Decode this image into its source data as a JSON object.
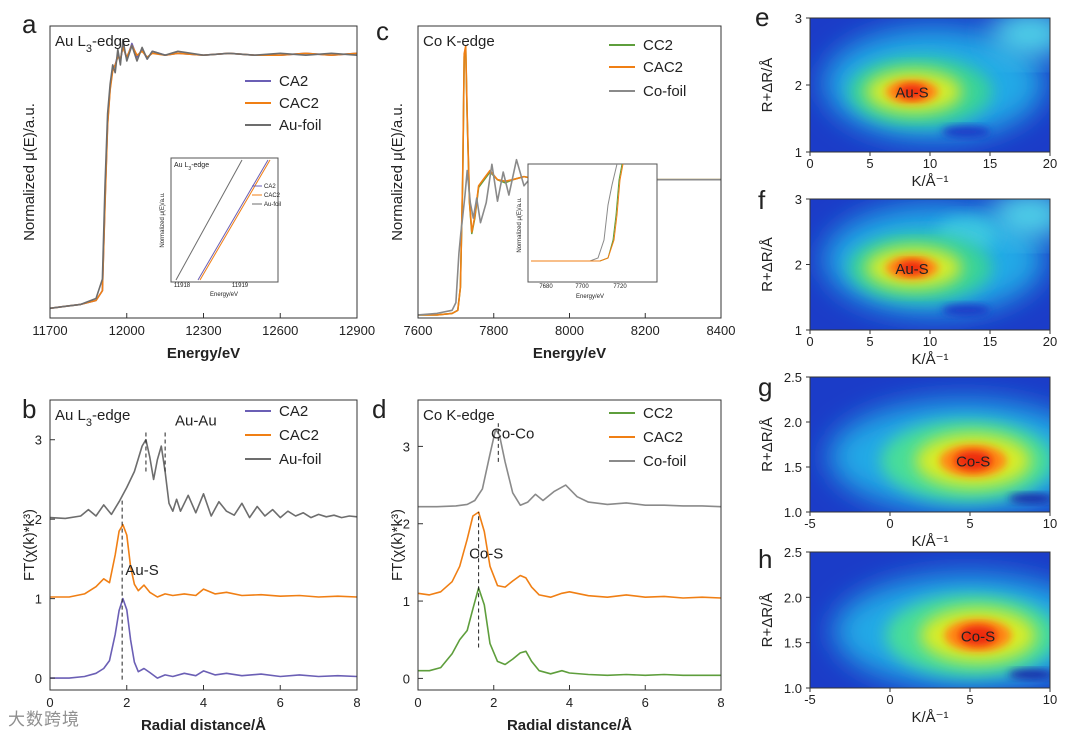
{
  "colors": {
    "CA2": "#6b5fb5",
    "CAC2": "#f07f14",
    "Au-foil": "#6d6d6d",
    "CC2": "#5e9e3c",
    "Co-foil": "#8a8a8a"
  },
  "watermark": "大数跨境",
  "chart_data": [
    {
      "panel": "a",
      "type": "line",
      "edge_label": "Au L3-edge",
      "xlabel": "Energy/eV",
      "ylabel": "Normalized μ(E)/a.u.",
      "xlim": [
        11700,
        12900
      ],
      "ylim": [
        0,
        1.5
      ],
      "xticks": [
        11700,
        12000,
        12300,
        12600,
        12900
      ],
      "legend": [
        "CA2",
        "CAC2",
        "Au-foil"
      ],
      "legend_position": "top-right",
      "series": [
        {
          "name": "CA2",
          "x": [
            11700,
            11760,
            11820,
            11880,
            11905,
            11915,
            11925,
            11935,
            11945,
            11955,
            11965,
            11975,
            11985,
            12000,
            12020,
            12040,
            12060,
            12080,
            12100,
            12150,
            12200,
            12300,
            12400,
            12500,
            12600,
            12700,
            12800,
            12900
          ],
          "y": [
            0.05,
            0.06,
            0.07,
            0.09,
            0.14,
            0.6,
            1.0,
            1.18,
            1.28,
            1.3,
            1.35,
            1.32,
            1.4,
            1.33,
            1.41,
            1.34,
            1.38,
            1.33,
            1.37,
            1.35,
            1.36,
            1.35,
            1.36,
            1.35,
            1.35,
            1.36,
            1.35,
            1.36
          ]
        },
        {
          "name": "CAC2",
          "x": [
            11700,
            11760,
            11820,
            11880,
            11905,
            11915,
            11925,
            11935,
            11945,
            11955,
            11965,
            11975,
            11985,
            12000,
            12020,
            12040,
            12060,
            12080,
            12100,
            12150,
            12200,
            12300,
            12400,
            12500,
            12600,
            12700,
            12800,
            12900
          ],
          "y": [
            0.05,
            0.06,
            0.07,
            0.09,
            0.14,
            0.58,
            0.99,
            1.17,
            1.27,
            1.3,
            1.34,
            1.33,
            1.39,
            1.34,
            1.4,
            1.35,
            1.37,
            1.34,
            1.36,
            1.35,
            1.36,
            1.35,
            1.36,
            1.35,
            1.35,
            1.36,
            1.35,
            1.36
          ]
        },
        {
          "name": "Au-foil",
          "x": [
            11700,
            11760,
            11820,
            11880,
            11905,
            11915,
            11925,
            11935,
            11945,
            11955,
            11965,
            11975,
            11985,
            12000,
            12020,
            12040,
            12060,
            12080,
            12100,
            12150,
            12200,
            12300,
            12400,
            12500,
            12600,
            12700,
            12800,
            12900
          ],
          "y": [
            0.05,
            0.06,
            0.07,
            0.1,
            0.2,
            0.68,
            1.05,
            1.2,
            1.3,
            1.26,
            1.38,
            1.3,
            1.43,
            1.32,
            1.4,
            1.32,
            1.39,
            1.33,
            1.37,
            1.35,
            1.37,
            1.35,
            1.36,
            1.35,
            1.36,
            1.35,
            1.36,
            1.35
          ]
        }
      ],
      "inset": {
        "edge_label": "Au L3-edge",
        "ylabel": "Normalized μ(E)/a.u.",
        "xlabel": "Energy/eV",
        "xticks": [
          "11918",
          "11919"
        ],
        "legend": [
          "CA2",
          "CAC2",
          "Au-foil"
        ]
      }
    },
    {
      "panel": "c",
      "type": "line",
      "edge_label": "Co K-edge",
      "xlabel": "Energy/eV",
      "ylabel": "Normalized μ(E)/a.u.",
      "xlim": [
        7600,
        8400
      ],
      "ylim": [
        0,
        1.9
      ],
      "xticks": [
        7600,
        7800,
        8000,
        8200,
        8400
      ],
      "legend": [
        "CC2",
        "CAC2",
        "Co-foil"
      ],
      "legend_position": "top-right",
      "series": [
        {
          "name": "CC2",
          "x": [
            7600,
            7650,
            7690,
            7705,
            7712,
            7718,
            7722,
            7726,
            7730,
            7736,
            7742,
            7750,
            7760,
            7775,
            7790,
            7810,
            7830,
            7850,
            7880,
            7920,
            7960,
            8000,
            8050,
            8100,
            8200,
            8300,
            8400
          ],
          "y": [
            0.02,
            0.02,
            0.03,
            0.05,
            0.2,
            0.9,
            1.7,
            1.75,
            1.3,
            0.75,
            0.55,
            0.65,
            0.85,
            0.9,
            0.95,
            0.9,
            0.88,
            0.9,
            0.92,
            0.9,
            0.91,
            0.9,
            0.9,
            0.9,
            0.9,
            0.9,
            0.9
          ]
        },
        {
          "name": "CAC2",
          "x": [
            7600,
            7650,
            7690,
            7705,
            7712,
            7718,
            7722,
            7726,
            7730,
            7736,
            7742,
            7750,
            7760,
            7775,
            7790,
            7810,
            7830,
            7850,
            7880,
            7920,
            7960,
            8000,
            8050,
            8100,
            8200,
            8300,
            8400
          ],
          "y": [
            0.02,
            0.02,
            0.03,
            0.05,
            0.2,
            0.92,
            1.72,
            1.77,
            1.32,
            0.76,
            0.56,
            0.66,
            0.86,
            0.91,
            0.96,
            0.9,
            0.89,
            0.9,
            0.92,
            0.9,
            0.91,
            0.9,
            0.9,
            0.9,
            0.9,
            0.9,
            0.9
          ]
        },
        {
          "name": "Co-foil",
          "x": [
            7600,
            7650,
            7690,
            7700,
            7708,
            7713,
            7718,
            7724,
            7730,
            7738,
            7746,
            7755,
            7765,
            7780,
            7795,
            7810,
            7825,
            7840,
            7860,
            7880,
            7900,
            7930,
            7960,
            8000,
            8100,
            8200,
            8400
          ],
          "y": [
            0.02,
            0.03,
            0.05,
            0.1,
            0.42,
            0.55,
            0.66,
            0.8,
            0.96,
            0.75,
            0.65,
            0.78,
            0.62,
            0.75,
            1.0,
            0.76,
            0.95,
            0.8,
            1.03,
            0.86,
            0.92,
            0.88,
            0.91,
            0.9,
            0.9,
            0.9,
            0.9
          ]
        }
      ],
      "inset": {
        "ylabel": "Normalized μ(E)/a.u.",
        "xlabel": "Energy/eV",
        "xticks": [
          "7680",
          "7700",
          "7720"
        ]
      }
    },
    {
      "panel": "b",
      "type": "line",
      "edge_label": "Au L3-edge",
      "xlabel": "Radial distance/Å",
      "ylabel": "FT(χ(k)*k³)",
      "xlim": [
        0,
        8
      ],
      "ylim": [
        -0.15,
        3.5
      ],
      "xticks": [
        0,
        2,
        4,
        6,
        8
      ],
      "yticks": [
        0,
        1,
        2,
        3
      ],
      "legend": [
        "CA2",
        "CAC2",
        "Au-foil"
      ],
      "legend_position": "top-right",
      "annotations": [
        {
          "text": "Au-Au",
          "x": 3.8,
          "y": 3.18
        },
        {
          "text": "Au-S",
          "x": 2.4,
          "y": 1.3
        }
      ],
      "series": [
        {
          "name": "CA2",
          "x": [
            0,
            0.5,
            0.9,
            1.2,
            1.4,
            1.55,
            1.7,
            1.8,
            1.9,
            2.0,
            2.1,
            2.2,
            2.3,
            2.45,
            2.6,
            2.8,
            3.0,
            3.2,
            3.5,
            3.8,
            4.0,
            4.3,
            4.6,
            5.0,
            5.5,
            6.0,
            6.5,
            7.0,
            7.5,
            8.0
          ],
          "y": [
            0.0,
            0.0,
            0.02,
            0.06,
            0.12,
            0.22,
            0.55,
            0.85,
            1.0,
            0.86,
            0.48,
            0.2,
            0.08,
            0.12,
            0.07,
            0.0,
            0.04,
            0.02,
            0.06,
            0.03,
            0.09,
            0.04,
            0.06,
            0.03,
            0.05,
            0.02,
            0.04,
            0.02,
            0.03,
            0.02
          ]
        },
        {
          "name": "CAC2",
          "x": [
            0,
            0.5,
            0.9,
            1.2,
            1.4,
            1.55,
            1.7,
            1.8,
            1.9,
            2.0,
            2.1,
            2.2,
            2.3,
            2.45,
            2.6,
            2.8,
            3.0,
            3.2,
            3.5,
            3.8,
            4.0,
            4.3,
            4.6,
            5.0,
            5.5,
            6.0,
            6.5,
            7.0,
            7.5,
            8.0
          ],
          "y": [
            1.02,
            1.02,
            1.06,
            1.15,
            1.25,
            1.2,
            1.55,
            1.85,
            1.93,
            1.8,
            1.4,
            1.18,
            1.1,
            1.17,
            1.08,
            1.02,
            1.06,
            1.04,
            1.06,
            1.04,
            1.12,
            1.06,
            1.08,
            1.04,
            1.05,
            1.03,
            1.04,
            1.02,
            1.03,
            1.02
          ]
        },
        {
          "name": "Au-foil",
          "x": [
            0,
            0.4,
            0.8,
            1.0,
            1.2,
            1.4,
            1.6,
            1.8,
            2.0,
            2.2,
            2.4,
            2.5,
            2.6,
            2.7,
            2.8,
            2.9,
            3.0,
            3.1,
            3.2,
            3.3,
            3.4,
            3.6,
            3.8,
            4.0,
            4.2,
            4.4,
            4.6,
            4.8,
            5.0,
            5.2,
            5.4,
            5.6,
            5.8,
            6.0,
            6.2,
            6.4,
            6.6,
            6.8,
            7.0,
            7.2,
            7.4,
            7.6,
            7.8,
            8.0
          ],
          "y": [
            2.02,
            2.01,
            2.04,
            2.12,
            2.04,
            2.18,
            2.06,
            2.22,
            2.4,
            2.6,
            2.92,
            3.0,
            2.78,
            2.5,
            2.75,
            2.92,
            2.6,
            2.2,
            2.1,
            2.25,
            2.1,
            2.3,
            2.08,
            2.32,
            2.04,
            2.22,
            2.1,
            2.05,
            2.2,
            2.02,
            2.16,
            2.04,
            2.12,
            2.02,
            2.1,
            2.04,
            2.08,
            2.02,
            2.06,
            2.03,
            2.05,
            2.02,
            2.04,
            2.03
          ]
        }
      ]
    },
    {
      "panel": "d",
      "type": "line",
      "edge_label": "Co K-edge",
      "xlabel": "Radial distance/Å",
      "ylabel": "FT(χ(k)*k³)",
      "xlim": [
        0,
        8
      ],
      "ylim": [
        -0.15,
        3.6
      ],
      "xticks": [
        0,
        2,
        4,
        6,
        8
      ],
      "yticks": [
        0,
        1,
        2,
        3
      ],
      "legend": [
        "CC2",
        "CAC2",
        "Co-foil"
      ],
      "legend_position": "top-right",
      "annotations": [
        {
          "text": "Co-Co",
          "x": 2.5,
          "y": 3.1
        },
        {
          "text": "Co-S",
          "x": 1.8,
          "y": 1.55
        }
      ],
      "series": [
        {
          "name": "CC2",
          "x": [
            0,
            0.3,
            0.6,
            0.9,
            1.1,
            1.3,
            1.45,
            1.6,
            1.75,
            1.9,
            2.1,
            2.3,
            2.5,
            2.7,
            2.85,
            3.0,
            3.2,
            3.5,
            3.8,
            4.0,
            4.5,
            5.0,
            5.5,
            6.0,
            6.5,
            7.0,
            7.5,
            8.0
          ],
          "y": [
            0.1,
            0.1,
            0.14,
            0.32,
            0.5,
            0.62,
            0.9,
            1.17,
            0.95,
            0.45,
            0.22,
            0.18,
            0.25,
            0.33,
            0.35,
            0.22,
            0.1,
            0.06,
            0.1,
            0.07,
            0.05,
            0.04,
            0.05,
            0.04,
            0.05,
            0.04,
            0.04,
            0.04
          ]
        },
        {
          "name": "CAC2",
          "x": [
            0,
            0.3,
            0.6,
            0.9,
            1.1,
            1.3,
            1.45,
            1.6,
            1.75,
            1.9,
            2.1,
            2.3,
            2.5,
            2.7,
            2.85,
            3.0,
            3.2,
            3.5,
            3.8,
            4.0,
            4.5,
            5.0,
            5.5,
            6.0,
            6.5,
            7.0,
            7.5,
            8.0
          ],
          "y": [
            1.1,
            1.08,
            1.12,
            1.25,
            1.45,
            1.8,
            2.1,
            2.15,
            1.9,
            1.45,
            1.2,
            1.18,
            1.26,
            1.33,
            1.3,
            1.18,
            1.08,
            1.05,
            1.1,
            1.12,
            1.07,
            1.05,
            1.08,
            1.05,
            1.06,
            1.04,
            1.05,
            1.04
          ]
        },
        {
          "name": "Co-foil",
          "x": [
            0,
            0.5,
            1.0,
            1.3,
            1.5,
            1.7,
            1.9,
            2.05,
            2.15,
            2.3,
            2.5,
            2.7,
            2.9,
            3.1,
            3.3,
            3.6,
            3.9,
            4.2,
            4.5,
            5.0,
            5.5,
            6.0,
            6.5,
            7.0,
            7.5,
            8.0
          ],
          "y": [
            2.22,
            2.22,
            2.23,
            2.25,
            2.3,
            2.45,
            2.9,
            3.22,
            3.15,
            2.8,
            2.4,
            2.24,
            2.28,
            2.38,
            2.3,
            2.42,
            2.5,
            2.35,
            2.28,
            2.25,
            2.27,
            2.24,
            2.24,
            2.23,
            2.23,
            2.22
          ]
        }
      ]
    },
    {
      "panel": "e",
      "type": "heatmap",
      "label": "Au-S",
      "xlabel": "K/Å⁻¹",
      "ylabel": "R+ΔR/Å",
      "xlim": [
        0,
        20
      ],
      "ylim": [
        1,
        3
      ],
      "xticks": [
        0,
        5,
        10,
        15,
        20
      ],
      "yticks": [
        1,
        2,
        3
      ],
      "peak": {
        "x": 8.5,
        "y": 1.9
      }
    },
    {
      "panel": "f",
      "type": "heatmap",
      "label": "Au-S",
      "xlabel": "K/Å⁻¹",
      "ylabel": "R+ΔR/Å",
      "xlim": [
        0,
        20
      ],
      "ylim": [
        1,
        3
      ],
      "xticks": [
        0,
        5,
        10,
        15,
        20
      ],
      "yticks": [
        1,
        2,
        3
      ],
      "peak": {
        "x": 8.5,
        "y": 1.95
      }
    },
    {
      "panel": "g",
      "type": "heatmap",
      "label": "Co-S",
      "xlabel": "K/Å⁻¹",
      "ylabel": "R+ΔR/Å",
      "xlim": [
        -5,
        10
      ],
      "ylim": [
        1.0,
        2.5
      ],
      "xticks": [
        -5,
        0,
        5,
        10
      ],
      "yticks": [
        1.0,
        1.5,
        2.0,
        2.5
      ],
      "peak": {
        "x": 5.2,
        "y": 1.57
      }
    },
    {
      "panel": "h",
      "type": "heatmap",
      "label": "Co-S",
      "xlabel": "K/Å⁻¹",
      "ylabel": "R+ΔR/Å",
      "xlim": [
        -5,
        10
      ],
      "ylim": [
        1.0,
        2.5
      ],
      "xticks": [
        -5,
        0,
        5,
        10
      ],
      "yticks": [
        1.0,
        1.5,
        2.0,
        2.5
      ],
      "peak": {
        "x": 5.5,
        "y": 1.58
      }
    }
  ]
}
